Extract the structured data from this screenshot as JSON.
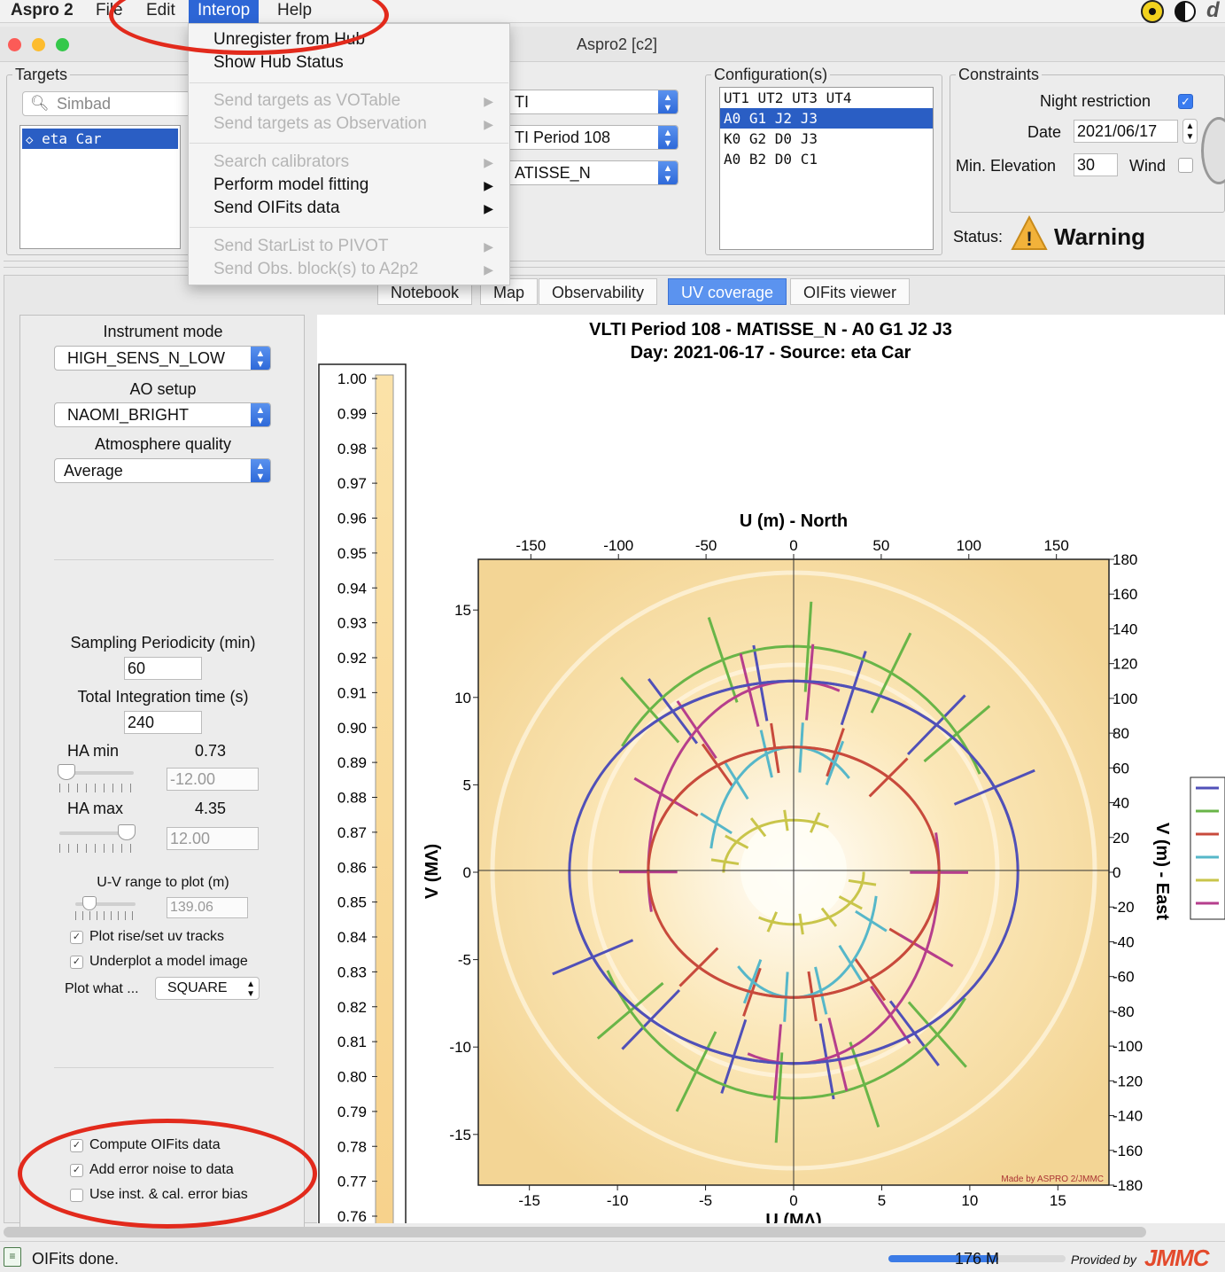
{
  "menubar": {
    "app": "Aspro 2",
    "items": [
      "File",
      "Edit",
      "Interop",
      "Help"
    ]
  },
  "window": {
    "title": "Aspro2 [c2]"
  },
  "interop_menu": {
    "items": [
      {
        "label": "Unregister from Hub",
        "enabled": true
      },
      {
        "label": "Show Hub Status",
        "enabled": true
      },
      {
        "label": "Send targets as VOTable",
        "enabled": false
      },
      {
        "label": "Send targets as Observation",
        "enabled": false
      },
      {
        "label": "Search calibrators",
        "enabled": false
      },
      {
        "label": "Perform model fitting",
        "enabled": true
      },
      {
        "label": "Send OIFits data",
        "enabled": true
      },
      {
        "label": "Send StarList to PIVOT",
        "enabled": false
      },
      {
        "label": "Send Obs. block(s) to A2p2",
        "enabled": false
      }
    ]
  },
  "targets": {
    "legend": "Targets",
    "search_placeholder": "Simbad",
    "items": [
      "eta Car"
    ]
  },
  "interferometer": {
    "facility": "TI",
    "period": "TI Period 108",
    "instrument": "ATISSE_N"
  },
  "configurations": {
    "legend": "Configuration(s)",
    "items": [
      "UT1 UT2 UT3 UT4",
      "A0 G1 J2 J3",
      "K0 G2 D0 J3",
      "A0 B2 D0 C1"
    ],
    "selected": "A0 G1 J2 J3"
  },
  "constraints": {
    "legend": "Constraints",
    "night_restriction_label": "Night restriction",
    "date_label": "Date",
    "date_value": "2021/06/17",
    "min_elev_label": "Min. Elevation",
    "min_elev_value": "30",
    "wind_label": "Wind",
    "status_label": "Status:",
    "status_value": "Warning"
  },
  "tabs": [
    "Notebook",
    "Map",
    "Observability",
    "UV coverage",
    "OIFits viewer"
  ],
  "side": {
    "instrument_mode_label": "Instrument mode",
    "instrument_mode_value": "HIGH_SENS_N_LOW",
    "ao_setup_label": "AO setup",
    "ao_setup_value": "NAOMI_BRIGHT",
    "atmosphere_label": "Atmosphere quality",
    "atmosphere_value": "Average",
    "sampling_label": "Sampling Periodicity (min)",
    "sampling_value": "60",
    "integration_label": "Total Integration time (s)",
    "integration_value": "240",
    "ha_min_label": "HA min",
    "ha_min_value": "0.73",
    "ha_min_field": "-12.00",
    "ha_max_label": "HA max",
    "ha_max_value": "4.35",
    "ha_max_field": "12.00",
    "uv_range_label": "U-V range to plot (m)",
    "uv_range_value": "139.06",
    "plot_tracks_label": "Plot rise/set uv tracks",
    "underplot_label": "Underplot a model image",
    "plot_what_label": "Plot what ...",
    "plot_what_value": "SQUARE",
    "compute_oifits_label": "Compute OIFits data",
    "add_noise_label": "Add error noise to data",
    "use_bias_label": "Use inst. & cal. error bias"
  },
  "plot": {
    "title_line1": "VLTI Period 108 - MATISSE_N - A0 G1 J2 J3",
    "title_line2": "Day: 2021-06-17 - Source: eta Car",
    "credit": "Made by ASPRO 2/JMMC"
  },
  "chart_data": {
    "type": "scatter",
    "title": "VLTI Period 108 - MATISSE_N - A0 G1 J2 J3",
    "subtitle": "Day: 2021-06-17 - Source: eta Car",
    "top_axis": {
      "label": "U (m) - North",
      "ticks": [
        -150,
        -100,
        -50,
        0,
        50,
        100,
        150
      ],
      "range": [
        -180,
        180
      ]
    },
    "right_axis": {
      "label": "V (m) - East",
      "ticks": [
        180,
        160,
        140,
        120,
        100,
        80,
        60,
        40,
        20,
        0,
        -20,
        -40,
        -60,
        -80,
        -100,
        -120,
        -140,
        -160,
        -180
      ],
      "range": [
        -180,
        180
      ]
    },
    "bottom_axis": {
      "label": "U (MΛ)",
      "ticks": [
        -15,
        -10,
        -5,
        0,
        5,
        10,
        15
      ],
      "range": [
        -17.9,
        17.9
      ]
    },
    "left_axis": {
      "label": "V (MΛ)",
      "ticks": [
        15,
        10,
        5,
        0,
        -5,
        -10,
        -15
      ],
      "range": [
        -17.9,
        17.9
      ]
    },
    "colorbar": {
      "ticks": [
        "1.00",
        "0.99",
        "0.98",
        "0.97",
        "0.96",
        "0.95",
        "0.94",
        "0.93",
        "0.92",
        "0.91",
        "0.90",
        "0.89",
        "0.88",
        "0.87",
        "0.86",
        "0.85",
        "0.84",
        "0.83",
        "0.82",
        "0.81",
        "0.80",
        "0.79",
        "0.78",
        "0.77",
        "0.76"
      ]
    },
    "uv_tracks": [
      {
        "color": "#5050b8",
        "rx": 128,
        "ry": 110
      },
      {
        "color": "#69b548",
        "rx": 118,
        "ry": 130
      },
      {
        "color": "#c84a3c",
        "rx": 83,
        "ry": 72
      },
      {
        "color": "#56b7c9",
        "rx": 48,
        "ry": 72
      },
      {
        "color": "#c9c54a",
        "rx": 40,
        "ry": 30
      },
      {
        "color": "#b63e8c",
        "rx": 83,
        "ry": 110
      }
    ]
  },
  "status": {
    "message": "OIFits done.",
    "memory": "176 M",
    "provided_by": "Provided by",
    "brand": "JMMC"
  }
}
